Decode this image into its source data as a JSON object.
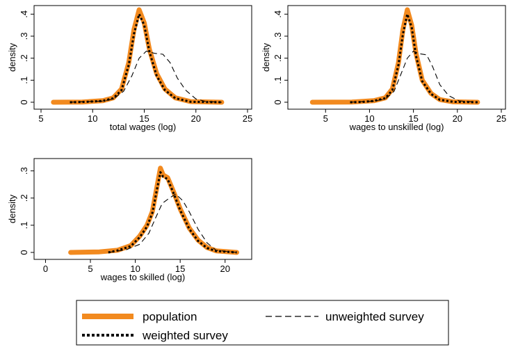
{
  "chart_data": [
    {
      "type": "line",
      "xlabel": "total wages (log)",
      "ylabel": "density",
      "xlim": [
        5,
        25
      ],
      "ylim": [
        0,
        0.42
      ],
      "xticks": [
        5,
        10,
        15,
        20,
        25
      ],
      "yticks": [
        0,
        0.1,
        0.2,
        0.3,
        0.4
      ],
      "yticklabels": [
        "0",
        ".1",
        ".2",
        ".3",
        ".4"
      ],
      "series": [
        {
          "name": "population",
          "x": [
            6.2,
            9,
            11,
            12,
            12.8,
            13.5,
            14,
            14.5,
            15,
            15.5,
            16.2,
            17,
            18,
            19.5,
            22.5
          ],
          "y": [
            0,
            0.001,
            0.007,
            0.02,
            0.06,
            0.18,
            0.33,
            0.42,
            0.36,
            0.24,
            0.13,
            0.06,
            0.02,
            0.003,
            0
          ]
        },
        {
          "name": "weighted survey",
          "x": [
            7.8,
            9,
            11,
            12,
            12.8,
            13.5,
            14,
            14.5,
            15,
            15.5,
            16.2,
            17,
            18,
            19.5,
            22.5
          ],
          "y": [
            0,
            0.001,
            0.006,
            0.018,
            0.055,
            0.17,
            0.31,
            0.4,
            0.35,
            0.23,
            0.12,
            0.055,
            0.018,
            0.002,
            0
          ]
        },
        {
          "name": "unweighted survey",
          "x": [
            7.8,
            11,
            12,
            13,
            13.8,
            14.5,
            15.2,
            16,
            16.8,
            17.5,
            18.2,
            19,
            20,
            21,
            22.5
          ],
          "y": [
            0,
            0.005,
            0.015,
            0.05,
            0.12,
            0.2,
            0.232,
            0.222,
            0.218,
            0.18,
            0.11,
            0.055,
            0.015,
            0.003,
            0
          ]
        }
      ]
    },
    {
      "type": "line",
      "xlabel": "wages to unskilled (log)",
      "ylabel": "density",
      "xlim": [
        1.5,
        25
      ],
      "ylim": [
        0,
        0.42
      ],
      "xticks": [
        5,
        10,
        15,
        20,
        25
      ],
      "yticks": [
        0,
        0.1,
        0.2,
        0.3,
        0.4
      ],
      "yticklabels": [
        "0",
        ".1",
        ".2",
        ".3",
        ".4"
      ],
      "series": [
        {
          "name": "population",
          "x": [
            3.5,
            8,
            10.5,
            11.8,
            12.6,
            13.3,
            13.8,
            14.3,
            14.8,
            15.3,
            16,
            17,
            18,
            19.5,
            22.3
          ],
          "y": [
            0,
            0.001,
            0.007,
            0.02,
            0.06,
            0.18,
            0.33,
            0.42,
            0.35,
            0.22,
            0.1,
            0.04,
            0.012,
            0.002,
            0
          ]
        },
        {
          "name": "weighted survey",
          "x": [
            7.8,
            9,
            10.5,
            11.8,
            12.6,
            13.3,
            13.8,
            14.3,
            14.8,
            15.3,
            16,
            17,
            18,
            19.5,
            22.3
          ],
          "y": [
            0,
            0.001,
            0.006,
            0.018,
            0.055,
            0.17,
            0.31,
            0.4,
            0.34,
            0.21,
            0.095,
            0.038,
            0.011,
            0.002,
            0
          ]
        },
        {
          "name": "unweighted survey",
          "x": [
            7.8,
            10.5,
            11.8,
            12.8,
            13.5,
            14.3,
            15,
            15.7,
            16.5,
            17.2,
            18,
            19,
            20.2,
            22.3
          ],
          "y": [
            0,
            0.005,
            0.015,
            0.05,
            0.12,
            0.2,
            0.232,
            0.22,
            0.215,
            0.16,
            0.08,
            0.03,
            0.006,
            0
          ]
        }
      ]
    },
    {
      "type": "line",
      "xlabel": "wages to skilled (log)",
      "ylabel": "density",
      "xlim": [
        -0.5,
        22.5
      ],
      "ylim": [
        0,
        0.33
      ],
      "xticks": [
        0,
        5,
        10,
        15,
        20
      ],
      "yticks": [
        0,
        0.1,
        0.2,
        0.3
      ],
      "yticklabels": [
        "0",
        ".1",
        ".2",
        ".3"
      ],
      "series": [
        {
          "name": "population",
          "x": [
            2.8,
            6,
            8,
            9.5,
            10.5,
            11.3,
            11.9,
            12.4,
            12.8,
            13.1,
            13.6,
            14.3,
            15,
            16,
            17,
            18,
            19,
            21.3
          ],
          "y": [
            0,
            0.002,
            0.008,
            0.025,
            0.06,
            0.1,
            0.15,
            0.24,
            0.31,
            0.285,
            0.275,
            0.22,
            0.16,
            0.09,
            0.045,
            0.018,
            0.006,
            0
          ]
        },
        {
          "name": "weighted survey",
          "x": [
            7,
            8,
            9.5,
            10.5,
            11.3,
            11.9,
            12.4,
            12.8,
            13.1,
            13.6,
            14.3,
            15,
            16,
            17,
            18,
            19,
            21.3
          ],
          "y": [
            0,
            0.007,
            0.023,
            0.056,
            0.095,
            0.145,
            0.23,
            0.295,
            0.278,
            0.27,
            0.215,
            0.155,
            0.087,
            0.042,
            0.016,
            0.005,
            0
          ]
        },
        {
          "name": "unweighted survey",
          "x": [
            7,
            9,
            10.5,
            11.5,
            12.3,
            13,
            13.8,
            14.5,
            15.3,
            16,
            17,
            18,
            19,
            21.3
          ],
          "y": [
            0,
            0.01,
            0.03,
            0.07,
            0.13,
            0.18,
            0.2,
            0.215,
            0.19,
            0.15,
            0.085,
            0.035,
            0.008,
            0
          ]
        }
      ]
    }
  ],
  "legend": {
    "items": [
      {
        "label": "population",
        "style": "population"
      },
      {
        "label": "unweighted survey",
        "style": "unweighted"
      },
      {
        "label": "weighted survey",
        "style": "weighted"
      }
    ]
  },
  "colors": {
    "population": "#f28a1f",
    "weighted": "#000000",
    "unweighted": "#000000",
    "axis": "#000000"
  }
}
